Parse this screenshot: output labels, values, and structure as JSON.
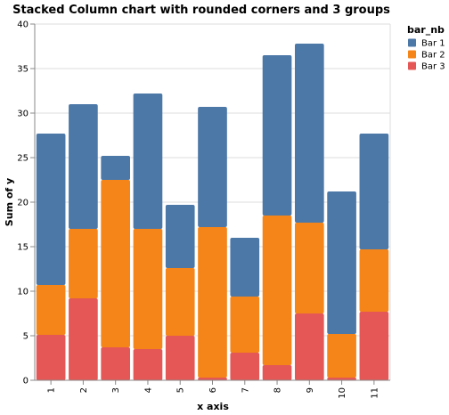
{
  "chart_data": {
    "type": "bar",
    "stacked": true,
    "title": "Stacked Column chart with rounded corners and 3 groups",
    "xlabel": "x axis",
    "ylabel": "Sum of y",
    "ylim": [
      0,
      40
    ],
    "y_ticks": [
      0,
      5,
      10,
      15,
      20,
      25,
      30,
      35,
      40
    ],
    "grid": true,
    "legend_title": "bar_nb",
    "legend_position": "top-right",
    "categories": [
      "1",
      "2",
      "3",
      "4",
      "5",
      "6",
      "7",
      "8",
      "9",
      "10",
      "11"
    ],
    "series": [
      {
        "name": "Bar 3",
        "color": "#e45756",
        "values": [
          5.1,
          9.2,
          3.7,
          3.5,
          5.0,
          0.3,
          3.1,
          1.7,
          7.5,
          0.3,
          7.7
        ]
      },
      {
        "name": "Bar 2",
        "color": "#f58518",
        "values": [
          5.6,
          7.8,
          18.8,
          13.5,
          7.6,
          16.9,
          6.3,
          16.8,
          10.2,
          4.9,
          7.0
        ]
      },
      {
        "name": "Bar 1",
        "color": "#4c78a8",
        "values": [
          17.0,
          14.0,
          2.7,
          15.2,
          7.1,
          13.5,
          6.6,
          18.0,
          20.1,
          16.0,
          13.0
        ]
      }
    ],
    "legend_order": [
      "Bar 1",
      "Bar 2",
      "Bar 3"
    ]
  }
}
